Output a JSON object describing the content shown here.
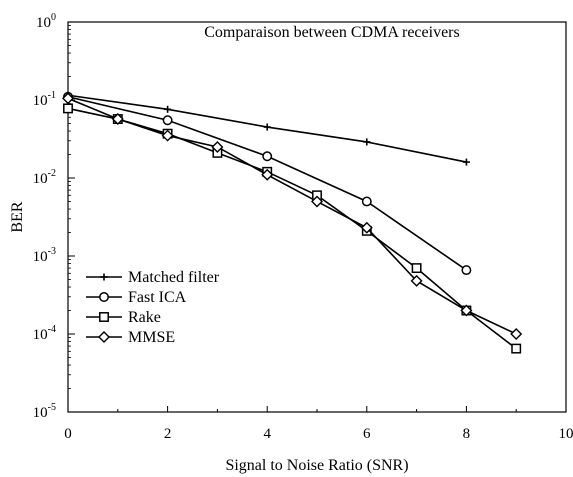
{
  "chart_data": {
    "type": "line",
    "title": "Comparaison between CDMA receivers",
    "xlabel": "Signal to Noise Ratio (SNR)",
    "ylabel": "BER",
    "x_ticks": [
      0,
      2,
      4,
      6,
      8,
      10
    ],
    "y_tick_bases": [
      "10",
      "10",
      "10",
      "10",
      "10",
      "10"
    ],
    "y_tick_exponents": [
      "0",
      "-1",
      "-2",
      "-3",
      "-4",
      "-5"
    ],
    "xlim": [
      0,
      10
    ],
    "ylim": [
      1e-05,
      1
    ],
    "y_scale": "log",
    "grid": false,
    "legend_position": "bottom-left",
    "series": [
      {
        "name": "Matched filter",
        "marker": "plus",
        "x": [
          0,
          2,
          4,
          6,
          8
        ],
        "y": [
          0.115,
          0.076,
          0.045,
          0.029,
          0.016
        ]
      },
      {
        "name": "Fast ICA",
        "marker": "circle",
        "x": [
          0,
          2,
          4,
          6,
          8
        ],
        "y": [
          0.11,
          0.055,
          0.019,
          0.005,
          0.00066
        ]
      },
      {
        "name": "Rake",
        "marker": "square",
        "x": [
          0,
          1,
          2,
          3,
          4,
          5,
          6,
          7,
          8,
          9
        ],
        "y": [
          0.078,
          0.057,
          0.037,
          0.021,
          0.012,
          0.006,
          0.0021,
          0.0007,
          0.0002,
          6.5e-05
        ]
      },
      {
        "name": "MMSE",
        "marker": "diamond",
        "x": [
          0,
          1,
          2,
          3,
          4,
          5,
          6,
          7,
          8,
          9
        ],
        "y": [
          0.105,
          0.057,
          0.035,
          0.025,
          0.011,
          0.005,
          0.0023,
          0.00048,
          0.0002,
          0.0001
        ]
      }
    ]
  }
}
